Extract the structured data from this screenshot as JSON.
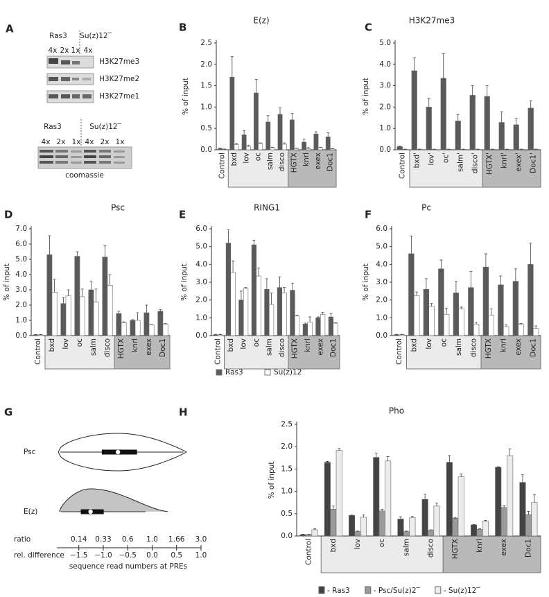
{
  "blot": {
    "label": "A",
    "top_headers": [
      "Ras3",
      "Su(z)12‾"
    ],
    "top_lanes": [
      "4x",
      "2x",
      "1x",
      "4x"
    ],
    "rows": [
      "H3K27me3",
      "H3K27me2",
      "H3K27me1"
    ],
    "bottom_headers": [
      "Ras3",
      "Su(z)12‾"
    ],
    "bottom_lanes": [
      "4x",
      "2x",
      "1x",
      "4x",
      "2x",
      "1x"
    ],
    "bottom_caption": "coomassie"
  },
  "legend": {
    "entries": [
      {
        "name": "Ras3",
        "color": "#5a5a5a"
      },
      {
        "name": "Su(z)12‾",
        "color": "#ffffff"
      }
    ]
  },
  "chart_data": [
    {
      "type": "bar",
      "label": "B",
      "title": "E(z)",
      "ylabel": "% of input",
      "categories": [
        "Control",
        "bxd",
        "lov",
        "oc",
        "salm",
        "disco",
        "HGTX",
        "knrl",
        "exex",
        "Doc1"
      ],
      "ylim": [
        0,
        2.5
      ],
      "yticks": [
        {
          "value": 0,
          "label": "0.0"
        },
        0.5,
        {
          "value": 1,
          "label": "1.0"
        },
        1.5,
        {
          "value": 2,
          "label": "2.0"
        },
        2.5
      ],
      "series": [
        {
          "color": "#5a5a5a",
          "values": [
            0.03,
            1.7,
            0.35,
            1.33,
            0.65,
            0.83,
            0.7,
            0.18,
            0.37,
            0.3
          ],
          "errors": [
            0.01,
            0.48,
            0.1,
            0.32,
            0.15,
            0.15,
            0.15,
            0.07,
            0.05,
            0.1
          ]
        },
        {
          "color": "#ffffff",
          "values": [
            0.01,
            0.12,
            0.08,
            0.15,
            0.05,
            0.13,
            0.03,
            0.03,
            0.05,
            0.02
          ],
          "errors": [
            0.01,
            0.03,
            0.03,
            0.01,
            0.01,
            0.03,
            0.01,
            0.02,
            0.01,
            0.01
          ]
        }
      ]
    },
    {
      "type": "bar",
      "label": "C",
      "title": "H3K27me3",
      "ylabel": "% of input",
      "categories": [
        "Control",
        "bxd'",
        "lov'",
        "oc'",
        "salm'",
        "disco'",
        "HGTX'",
        "knrl'",
        "exex'",
        "Doc1'"
      ],
      "ylim": [
        0,
        5
      ],
      "yticks": [
        {
          "value": 0,
          "label": "0.0"
        },
        {
          "value": 1,
          "label": "1.0"
        },
        {
          "value": 2,
          "label": "2.0"
        },
        {
          "value": 3,
          "label": "3.0"
        },
        {
          "value": 4,
          "label": "4.0"
        },
        {
          "value": 5,
          "label": "5.0"
        }
      ],
      "series": [
        {
          "color": "#5a5a5a",
          "values": [
            0.15,
            3.7,
            2.0,
            3.35,
            1.35,
            2.55,
            2.5,
            1.28,
            1.17,
            1.95
          ],
          "errors": [
            0.02,
            0.6,
            0.4,
            1.15,
            0.3,
            0.45,
            0.5,
            0.5,
            0.3,
            0.35
          ]
        },
        {
          "color": "#ffffff",
          "values": [
            0.02,
            0.02,
            0.02,
            0.02,
            0.02,
            0.02,
            0.02,
            0.02,
            0.02,
            0.02
          ],
          "errors": [
            0.01,
            0.01,
            0.01,
            0.01,
            0.01,
            0.01,
            0.01,
            0.01,
            0.01,
            0.01
          ]
        }
      ]
    },
    {
      "type": "bar",
      "label": "D",
      "title": "Psc",
      "ylabel": "% of input",
      "categories": [
        "Control",
        "bxd",
        "lov",
        "oc",
        "salm",
        "disco",
        "HGTX",
        "knrl",
        "exex",
        "Doc1"
      ],
      "ylim": [
        0,
        7
      ],
      "yticks": [
        {
          "value": 0,
          "label": "0.0"
        },
        {
          "value": 1,
          "label": "1.0"
        },
        {
          "value": 2,
          "label": "2.0"
        },
        {
          "value": 3,
          "label": "3.0"
        },
        {
          "value": 4,
          "label": "4.0"
        },
        {
          "value": 5,
          "label": "5.0"
        },
        {
          "value": 6,
          "label": "6.0"
        },
        {
          "value": 7,
          "label": "7.0"
        }
      ],
      "series": [
        {
          "color": "#5a5a5a",
          "values": [
            0.05,
            5.3,
            2.1,
            5.2,
            3.0,
            5.15,
            1.45,
            1.0,
            1.5,
            1.6
          ],
          "errors": [
            0.02,
            1.25,
            0.4,
            0.3,
            0.55,
            0.75,
            0.15,
            0.05,
            0.5,
            0.1
          ]
        },
        {
          "color": "#ffffff",
          "values": [
            0.05,
            2.85,
            2.6,
            2.55,
            2.2,
            3.3,
            0.85,
            1.0,
            0.7,
            0.75
          ],
          "errors": [
            0.02,
            0.85,
            0.4,
            0.5,
            0.85,
            0.7,
            0.05,
            0.5,
            0.02,
            0.05
          ]
        }
      ]
    },
    {
      "type": "bar",
      "label": "E",
      "title": "RING1",
      "ylabel": "% of input",
      "categories": [
        "Control",
        "bxd",
        "lov",
        "oc",
        "salm",
        "disco",
        "HGTX",
        "knrl",
        "exex",
        "Doc1"
      ],
      "ylim": [
        0,
        6
      ],
      "yticks": [
        {
          "value": 0,
          "label": "0.0"
        },
        {
          "value": 1,
          "label": "1.0"
        },
        {
          "value": 2,
          "label": "2.0"
        },
        {
          "value": 3,
          "label": "3.0"
        },
        {
          "value": 4,
          "label": "4.0"
        },
        {
          "value": 5,
          "label": "5.0"
        },
        {
          "value": 6,
          "label": "6.0"
        }
      ],
      "series": [
        {
          "color": "#5a5a5a",
          "values": [
            0.05,
            5.2,
            2.0,
            5.1,
            2.6,
            2.7,
            2.55,
            0.65,
            1.0,
            1.05
          ],
          "errors": [
            0.02,
            0.75,
            0.5,
            0.25,
            0.6,
            0.6,
            0.4,
            0.05,
            0.05,
            0.2
          ]
        },
        {
          "color": "#ffffff",
          "values": [
            0.05,
            3.55,
            2.65,
            3.35,
            1.75,
            2.4,
            1.1,
            0.75,
            1.2,
            0.7
          ],
          "errors": [
            0.02,
            0.65,
            0.05,
            0.45,
            0.65,
            0.3,
            0.05,
            0.3,
            0.1,
            0.02
          ]
        }
      ]
    },
    {
      "type": "bar",
      "label": "F",
      "title": "Pc",
      "ylabel": "% of input",
      "categories": [
        "Control",
        "bxd",
        "lov",
        "oc",
        "salm",
        "disco",
        "HGTX",
        "knrl",
        "exex",
        "Doc1"
      ],
      "ylim": [
        0,
        6
      ],
      "yticks": [
        {
          "value": 0,
          "label": "0.0"
        },
        {
          "value": 1,
          "label": "1.0"
        },
        {
          "value": 2,
          "label": "2.0"
        },
        {
          "value": 3,
          "label": "3.0"
        },
        {
          "value": 4,
          "label": "4.0"
        },
        {
          "value": 5,
          "label": "5.0"
        },
        {
          "value": 6,
          "label": "6.0"
        }
      ],
      "series": [
        {
          "color": "#5a5a5a",
          "values": [
            0.05,
            4.6,
            2.6,
            3.75,
            2.4,
            2.7,
            3.85,
            2.85,
            3.05,
            4.0
          ],
          "errors": [
            0.02,
            1.0,
            0.6,
            0.5,
            0.65,
            0.9,
            0.75,
            0.5,
            0.7,
            1.2
          ]
        },
        {
          "color": "#ffffff",
          "values": [
            0.05,
            2.25,
            1.65,
            1.2,
            1.5,
            0.65,
            1.15,
            0.5,
            0.65,
            0.4
          ],
          "errors": [
            0.02,
            0.2,
            0.15,
            0.35,
            0.1,
            0.1,
            0.35,
            0.1,
            0.03,
            0.15
          ]
        }
      ]
    },
    {
      "type": "violin",
      "label": "G",
      "xlabel": "sequence read numbers at PREs",
      "xlim": [
        -1.95,
        1.0
      ],
      "xticks_name": "rel. difference",
      "xticks": [
        {
          "value": -1.5,
          "label": "−1.5"
        },
        {
          "value": -1,
          "label": "−1.0"
        },
        {
          "value": -0.5,
          "label": "−0.5"
        },
        {
          "value": 0,
          "label": "0.0"
        },
        0.5,
        {
          "value": 1,
          "label": "1.0"
        }
      ],
      "ratio_name": "ratio",
      "ratio_ticks": [
        {
          "value": -1.5,
          "label": "0.14"
        },
        {
          "value": -1,
          "label": "0.33"
        },
        {
          "value": -0.5,
          "label": "0.6"
        },
        {
          "value": 0,
          "label": "1.0"
        },
        {
          "value": 0.5,
          "label": "1.66"
        },
        {
          "value": 1,
          "label": "3.0"
        }
      ],
      "violins": [
        {
          "name": "Psc",
          "color": "#ffffff",
          "extent": [
            -1.92,
            0.7
          ],
          "whiskers": [
            -1.88,
            0.64
          ],
          "box": [
            -1.03,
            -0.31
          ],
          "median": -0.7
        },
        {
          "name": "E(z)",
          "color": "#c4c4c4",
          "extent": [
            -1.9,
            0.36
          ],
          "whiskers": [
            -1.87,
            -0.14
          ],
          "box": [
            -1.46,
            -0.99
          ],
          "median": -1.26
        }
      ]
    },
    {
      "type": "bar",
      "label": "H",
      "title": "Pho",
      "ylabel": "% of input",
      "categories": [
        "Control",
        "bxd",
        "lov",
        "oc",
        "salm",
        "disco",
        "HGTX",
        "knrl",
        "exex",
        "Doc1"
      ],
      "ylim": [
        0,
        2.5
      ],
      "yticks": [
        {
          "value": 0,
          "label": "0.0"
        },
        0.5,
        {
          "value": 1,
          "label": "1.0"
        },
        1.5,
        {
          "value": 2,
          "label": "2.0"
        },
        2.5
      ],
      "series": [
        {
          "name": "- Ras3",
          "color": "#444444",
          "values": [
            0.03,
            1.65,
            0.46,
            1.76,
            0.38,
            0.82,
            1.65,
            0.25,
            1.54,
            1.2
          ],
          "errors": [
            0.01,
            0.02,
            0.01,
            0.1,
            0.05,
            0.12,
            0.15,
            0.01,
            0.01,
            0.17
          ]
        },
        {
          "name": "- Psc/Su(z)2‾",
          "color": "#9a9a9a",
          "values": [
            0.03,
            0.6,
            0.1,
            0.56,
            0.1,
            0.13,
            0.4,
            0.15,
            0.64,
            0.48
          ],
          "errors": [
            0.01,
            0.07,
            0.01,
            0.04,
            0.01,
            0.01,
            0.01,
            0.01,
            0.04,
            0.07
          ]
        },
        {
          "name": "- Su(z)12‾",
          "color": "#ececec",
          "values": [
            0.14,
            1.92,
            0.42,
            1.68,
            0.41,
            0.67,
            1.33,
            0.33,
            1.8,
            0.75
          ],
          "errors": [
            0.02,
            0.04,
            0.05,
            0.1,
            0.03,
            0.07,
            0.06,
            0.02,
            0.15,
            0.18
          ]
        }
      ]
    }
  ]
}
